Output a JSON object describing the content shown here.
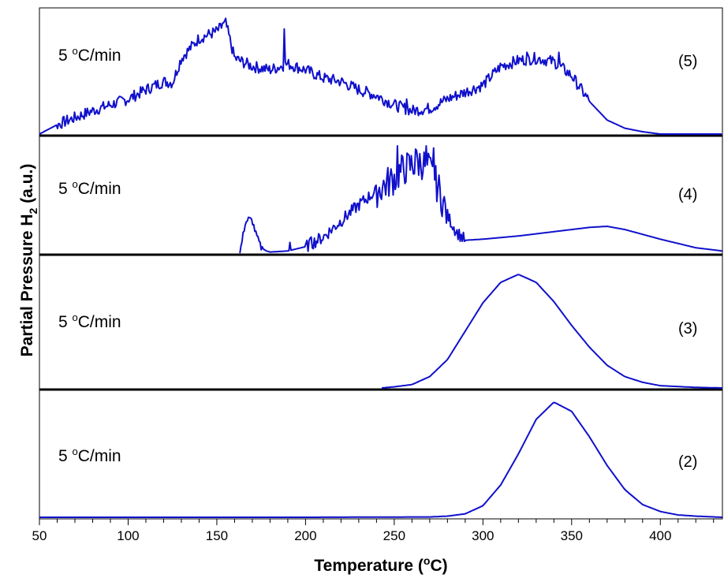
{
  "chart_data": {
    "type": "line",
    "xlabel": "Temperature (",
    "xlabel_sup": "o",
    "xlabel_end": "C)",
    "ylabel": "Partial Pressure H",
    "ylabel_sub": "2",
    "ylabel_end": " (a.u.)",
    "xlim": [
      50,
      435
    ],
    "x_ticks": [
      50,
      100,
      150,
      200,
      250,
      300,
      350,
      400
    ],
    "x_tick_labels": [
      "50",
      "100",
      "150",
      "200",
      "250",
      "300",
      "350",
      "400"
    ],
    "stacked_panels": true,
    "line_color": "#1010cc",
    "panels": [
      {
        "id": "(5)",
        "rate_prefix": "5 ",
        "rate_sup": "o",
        "rate_suffix": "C/min",
        "shape": "noisy-broad",
        "x": [
          50,
          60,
          70,
          80,
          90,
          100,
          110,
          120,
          125,
          130,
          140,
          150,
          155,
          160,
          170,
          180,
          190,
          200,
          210,
          220,
          230,
          240,
          250,
          260,
          270,
          280,
          290,
          300,
          310,
          320,
          330,
          340,
          350,
          360,
          370,
          380,
          390,
          400,
          420,
          435
        ],
        "y": [
          0.0,
          0.08,
          0.14,
          0.2,
          0.25,
          0.3,
          0.38,
          0.45,
          0.44,
          0.65,
          0.82,
          0.88,
          0.95,
          0.65,
          0.58,
          0.55,
          0.6,
          0.55,
          0.48,
          0.45,
          0.38,
          0.33,
          0.25,
          0.2,
          0.22,
          0.3,
          0.36,
          0.42,
          0.58,
          0.63,
          0.65,
          0.62,
          0.5,
          0.28,
          0.12,
          0.05,
          0.02,
          0.0,
          0.0,
          0.0
        ],
        "spikes": [
          [
            153,
            0.95
          ],
          [
            188,
            0.9
          ],
          [
            257,
            0.3
          ],
          [
            325,
            0.7
          ],
          [
            343,
            0.7
          ]
        ]
      },
      {
        "id": "(4)",
        "rate_prefix": "5 ",
        "rate_sup": "o",
        "rate_suffix": "C/min",
        "shape": "noisy-two-part",
        "x": [
          163,
          166,
          168,
          170,
          172,
          175,
          178,
          180,
          190,
          200,
          210,
          220,
          230,
          240,
          250,
          255,
          260,
          265,
          270,
          275,
          280,
          285,
          290,
          300,
          320,
          340,
          360,
          370,
          380,
          400,
          420,
          435
        ],
        "y": [
          0.0,
          0.28,
          0.32,
          0.3,
          0.18,
          0.05,
          0.02,
          0.01,
          0.02,
          0.06,
          0.15,
          0.3,
          0.45,
          0.58,
          0.7,
          0.78,
          0.82,
          0.85,
          0.78,
          0.6,
          0.35,
          0.2,
          0.12,
          0.13,
          0.16,
          0.2,
          0.24,
          0.25,
          0.22,
          0.13,
          0.05,
          0.02
        ],
        "spikes": [
          [
            252,
            1.0
          ],
          [
            262,
            0.97
          ],
          [
            268,
            1.0
          ],
          [
            272,
            0.98
          ],
          [
            203,
            0.15
          ],
          [
            191,
            0.1
          ]
        ]
      },
      {
        "id": "(3)",
        "rate_prefix": "5 ",
        "rate_sup": "o",
        "rate_suffix": "C/min",
        "shape": "gaussian",
        "x": [
          243,
          250,
          260,
          270,
          280,
          290,
          300,
          310,
          320,
          330,
          340,
          350,
          360,
          370,
          380,
          390,
          400,
          420,
          435
        ],
        "y": [
          0.0,
          0.01,
          0.03,
          0.1,
          0.25,
          0.5,
          0.75,
          0.93,
          1.0,
          0.93,
          0.76,
          0.55,
          0.36,
          0.2,
          0.1,
          0.05,
          0.02,
          0.005,
          0.0
        ]
      },
      {
        "id": "(2)",
        "rate_prefix": "5 ",
        "rate_sup": "o",
        "rate_suffix": "C/min",
        "shape": "gaussian",
        "x": [
          50,
          200,
          270,
          280,
          290,
          300,
          310,
          320,
          330,
          340,
          350,
          360,
          370,
          380,
          390,
          400,
          410,
          420,
          435
        ],
        "y": [
          0.0,
          0.0,
          0.003,
          0.01,
          0.03,
          0.1,
          0.28,
          0.55,
          0.85,
          1.0,
          0.92,
          0.7,
          0.45,
          0.24,
          0.11,
          0.05,
          0.02,
          0.01,
          0.0
        ]
      }
    ]
  }
}
